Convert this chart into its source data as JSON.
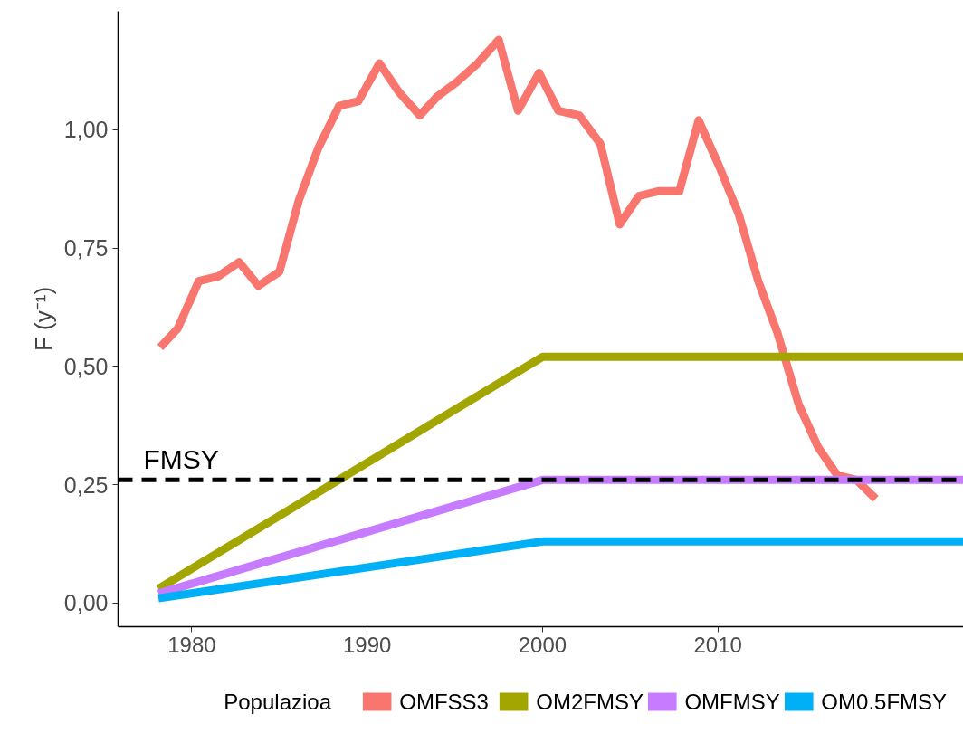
{
  "chart_data": {
    "type": "line",
    "ylabel": "F (y⁻¹)",
    "legend_title": "Populazioa",
    "legend": "bottom",
    "grid": false,
    "line_style": "solid",
    "marker": "none",
    "xlim": [
      1975.8,
      2024.0
    ],
    "xticks": [
      1980,
      1990,
      2000,
      2010
    ],
    "ylim": [
      -0.05,
      1.25
    ],
    "yticks": [
      {
        "value": 0,
        "label": "0,00"
      },
      {
        "value": 0.25,
        "label": "0,25"
      },
      {
        "value": 0.5,
        "label": "0,50"
      },
      {
        "value": 0.75,
        "label": "0,75"
      },
      {
        "value": 1.0,
        "label": "1,00"
      }
    ],
    "series": [
      {
        "name": "OMFSS3",
        "color": "#f8766d",
        "x": [
          1978.2,
          1979.2,
          1980.4,
          1981.5,
          1982.7,
          1983.8,
          1985.0,
          1986.1,
          1987.2,
          1988.4,
          1989.5,
          1990.7,
          1991.8,
          1993.0,
          1994.0,
          1995.1,
          1996.3,
          1997.5,
          1998.6,
          1999.8,
          2000.9,
          2002.1,
          2003.3,
          2004.4,
          2005.5,
          2006.6,
          2007.8,
          2008.9,
          2010.1,
          2011.2,
          2012.3,
          2013.4,
          2014.6,
          2015.7,
          2016.8,
          2017.9,
          2019.0
        ],
        "values": [
          0.54,
          0.58,
          0.68,
          0.69,
          0.72,
          0.67,
          0.7,
          0.85,
          0.96,
          1.05,
          1.06,
          1.14,
          1.08,
          1.03,
          1.07,
          1.1,
          1.14,
          1.19,
          1.04,
          1.12,
          1.04,
          1.03,
          0.97,
          0.8,
          0.86,
          0.87,
          0.87,
          1.02,
          0.92,
          0.82,
          0.68,
          0.57,
          0.42,
          0.33,
          0.27,
          0.26,
          0.22
        ]
      },
      {
        "name": "OM2FMSY",
        "color": "#a3a500",
        "x": [
          1978.1,
          2000.0,
          2024.0
        ],
        "values": [
          0.03,
          0.52,
          0.52
        ]
      },
      {
        "name": "OMFMSY",
        "color": "#c77cff",
        "x": [
          1978.1,
          2000.0,
          2024.0
        ],
        "values": [
          0.02,
          0.26,
          0.26
        ]
      },
      {
        "name": "OM0.5FMSY",
        "color": "#00b0f6",
        "x": [
          1978.1,
          2000.0,
          2024.0
        ],
        "values": [
          0.01,
          0.13,
          0.13
        ]
      }
    ],
    "ref_lines": [
      {
        "axis": "y",
        "value": 0.26,
        "label": "FMSY",
        "color": "#000000",
        "line_style": "dashed"
      }
    ]
  }
}
